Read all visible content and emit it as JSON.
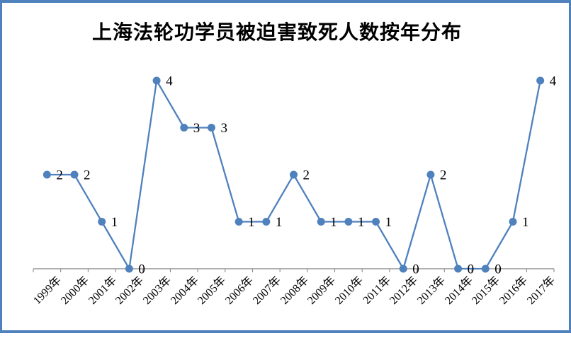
{
  "window": {
    "border_color": "#4F81BD",
    "background_color": "#FFFFFF"
  },
  "chart_data": {
    "type": "line",
    "title": "上海法轮功学员被迫害致死人数按年分布",
    "categories": [
      "1999年",
      "2000年",
      "2001年",
      "2002年",
      "2003年",
      "2004年",
      "2005年",
      "2006年",
      "2007年",
      "2008年",
      "2009年",
      "2010年",
      "2011年",
      "2012年",
      "2013年",
      "2014年",
      "2015年",
      "2016年",
      "2017年"
    ],
    "values": [
      2,
      2,
      1,
      0,
      4,
      3,
      3,
      1,
      1,
      2,
      1,
      1,
      1,
      0,
      2,
      0,
      0,
      1,
      4
    ],
    "data_labels_visible": true,
    "xlabel": "",
    "ylabel": "",
    "ylim": [
      0,
      4.4
    ],
    "grid": false,
    "legend": false,
    "y_axis_visible": false,
    "marker_style": "circle",
    "x_label_rotation": -45,
    "line_color": "#4F81BD",
    "marker_color": "#4F81BD",
    "axis_color": "#808080",
    "label_color": "#000000",
    "title_color": "#000000"
  }
}
